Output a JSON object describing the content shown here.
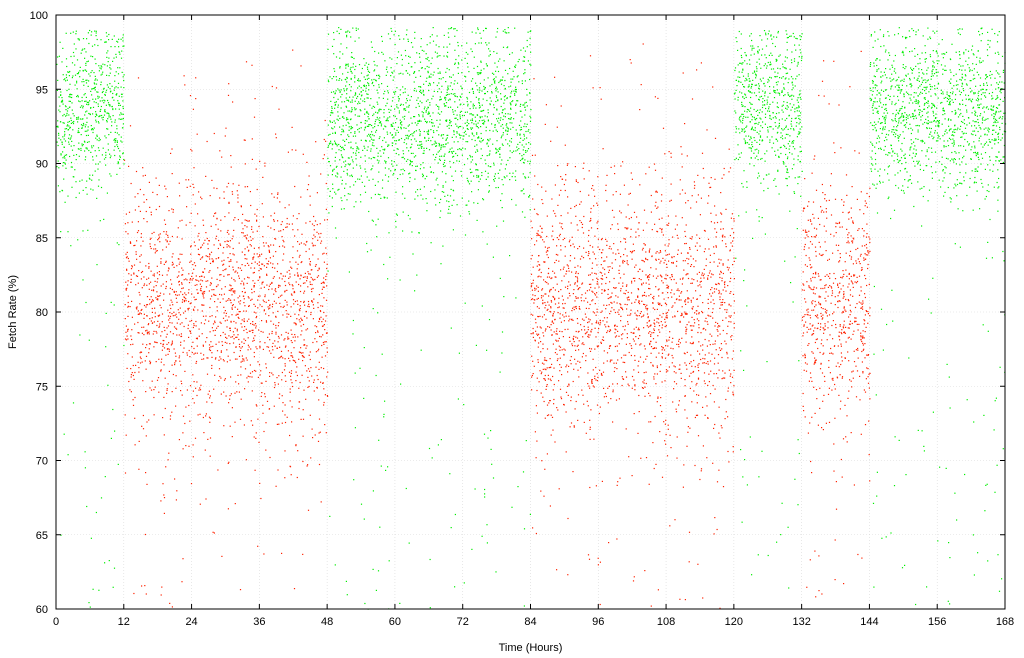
{
  "chart_data": {
    "type": "scatter",
    "title": "",
    "xlabel": "Time (Hours)",
    "ylabel": "Fetch Rate (%)",
    "xlim": [
      0,
      168
    ],
    "ylim": [
      60,
      100
    ],
    "xticks": [
      0,
      12,
      24,
      36,
      48,
      60,
      72,
      84,
      96,
      108,
      120,
      132,
      144,
      156,
      168
    ],
    "yticks": [
      60,
      65,
      70,
      75,
      80,
      85,
      90,
      95,
      100
    ],
    "grid": true,
    "legend": "none",
    "colors": {
      "high": "#00ee00",
      "low": "#ff2200"
    },
    "series": [
      {
        "color_key": "high",
        "segments": [
          {
            "x": [
              0,
              12
            ],
            "center": 93.5,
            "spread": 5.0,
            "top": 99.0
          },
          {
            "x": [
              48,
              84
            ],
            "center": 93.0,
            "spread": 5.5,
            "top": 99.2
          },
          {
            "x": [
              120,
              132
            ],
            "center": 94.0,
            "spread": 5.0,
            "top": 99.0
          },
          {
            "x": [
              144,
              168
            ],
            "center": 93.5,
            "spread": 5.0,
            "top": 99.2
          }
        ]
      },
      {
        "color_key": "low",
        "segments": [
          {
            "x": [
              12,
              48
            ],
            "center": 80.5,
            "spread": 7.5,
            "top": 98.0
          },
          {
            "x": [
              84,
              120
            ],
            "center": 80.5,
            "spread": 7.5,
            "top": 98.5
          },
          {
            "x": [
              132,
              144
            ],
            "center": 80.5,
            "spread": 7.5,
            "top": 98.0
          }
        ]
      }
    ]
  }
}
